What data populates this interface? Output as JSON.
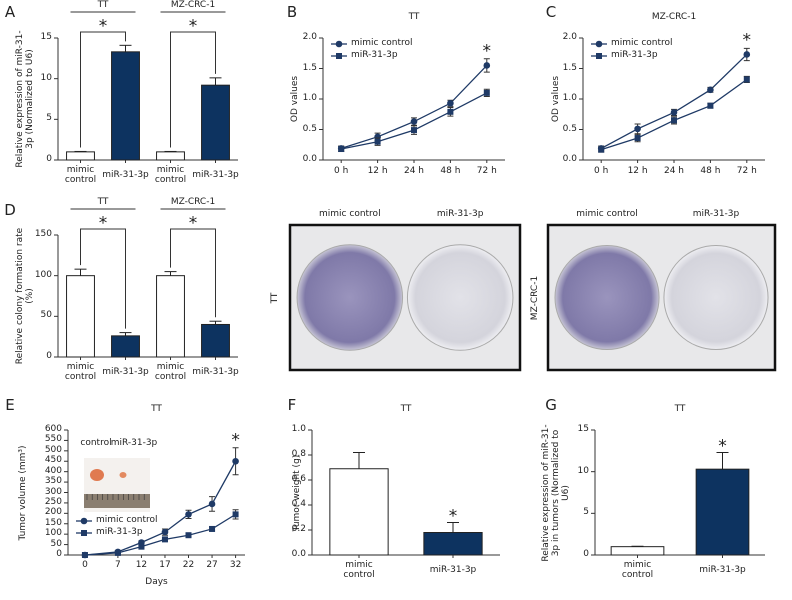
{
  "chart_data": [
    {
      "type": "bar",
      "panel": "A",
      "ylabel": "Relative expression of miR-31-3p (Normalized to U6)",
      "categories": [
        "mimic control",
        "miR-31-3p",
        "mimic control",
        "miR-31-3p"
      ],
      "values": [
        1,
        13.3,
        1,
        9.2
      ],
      "errors": [
        0.05,
        0.8,
        0.05,
        0.9
      ],
      "colors": [
        "#ffffff",
        "#0d3360",
        "#ffffff",
        "#0d3360"
      ],
      "groups": [
        "TT",
        "MZ-CRC-1"
      ],
      "significance": "*",
      "ylim": [
        0,
        15
      ],
      "yticks": [
        0,
        5,
        10,
        15
      ]
    },
    {
      "type": "line",
      "panel": "B",
      "title": "TT",
      "ylabel": "OD values",
      "categories": [
        "0 h",
        "12 h",
        "24 h",
        "48 h",
        "72 h"
      ],
      "series": [
        {
          "name": "mimic control",
          "color": "#1f3a66",
          "marker": "circle",
          "values": [
            0.19,
            0.38,
            0.63,
            0.93,
            1.55
          ],
          "errors": [
            0.04,
            0.06,
            0.06,
            0.05,
            0.11
          ]
        },
        {
          "name": "miR-31-3p",
          "color": "#1f3a66",
          "marker": "square",
          "values": [
            0.18,
            0.3,
            0.49,
            0.79,
            1.1
          ],
          "errors": [
            0.04,
            0.06,
            0.07,
            0.07,
            0.06
          ]
        }
      ],
      "legend": "upper left",
      "significance": "*",
      "ylim": [
        0,
        2
      ],
      "yticks": [
        {
          "value": 0,
          "label": "0.0"
        },
        0.5,
        {
          "value": 1,
          "label": "1.0"
        },
        1.5,
        {
          "value": 2,
          "label": "2.0"
        }
      ]
    },
    {
      "type": "line",
      "panel": "C",
      "title": "MZ-CRC-1",
      "ylabel": "OD values",
      "categories": [
        "0 h",
        "12 h",
        "24 h",
        "48 h",
        "72 h"
      ],
      "series": [
        {
          "name": "mimic control",
          "color": "#1f3a66",
          "marker": "circle",
          "values": [
            0.19,
            0.51,
            0.78,
            1.15,
            1.73
          ],
          "errors": [
            0.04,
            0.08,
            0.05,
            0.04,
            0.1
          ]
        },
        {
          "name": "miR-31-3p",
          "color": "#1f3a66",
          "marker": "square",
          "values": [
            0.17,
            0.36,
            0.65,
            0.89,
            1.32
          ],
          "errors": [
            0.04,
            0.06,
            0.06,
            0.04,
            0.05
          ]
        }
      ],
      "legend": "upper left",
      "significance": "*",
      "ylim": [
        0,
        2
      ],
      "yticks": [
        {
          "value": 0,
          "label": "0.0"
        },
        0.5,
        {
          "value": 1,
          "label": "1.0"
        },
        1.5,
        {
          "value": 2,
          "label": "2.0"
        }
      ]
    },
    {
      "type": "bar",
      "panel": "D",
      "ylabel": "Relative colony formation rate (%)",
      "categories": [
        "mimic control",
        "miR-31-3p",
        "mimic control",
        "miR-31-3p"
      ],
      "values": [
        100,
        26,
        100,
        40
      ],
      "errors": [
        8,
        4,
        5,
        4
      ],
      "colors": [
        "#ffffff",
        "#0d3360",
        "#ffffff",
        "#0d3360"
      ],
      "groups": [
        "TT",
        "MZ-CRC-1"
      ],
      "significance": "*",
      "ylim": [
        0,
        150
      ],
      "yticks": [
        0,
        50,
        100,
        150
      ]
    },
    {
      "type": "line",
      "panel": "E",
      "title": "TT",
      "ylabel": "Tumor volume (mm³)",
      "xlabel": "Days",
      "x": [
        0,
        7,
        12,
        17,
        22,
        27,
        32
      ],
      "series": [
        {
          "name": "mimic control",
          "color": "#1f3a66",
          "marker": "circle",
          "values": [
            0,
            15,
            60,
            110,
            195,
            245,
            450
          ],
          "errors": [
            0,
            5,
            8,
            15,
            20,
            35,
            65
          ]
        },
        {
          "name": "miR-31-3p",
          "color": "#1f3a66",
          "marker": "square",
          "values": [
            0,
            10,
            40,
            75,
            95,
            125,
            195
          ],
          "errors": [
            0,
            4,
            6,
            8,
            8,
            10,
            22
          ]
        }
      ],
      "legend": "lower left",
      "significance": "*",
      "inset_labels": [
        "control",
        "miR-31-3p"
      ],
      "xlim": [
        -3.6,
        34
      ],
      "xticks": [
        0,
        7,
        12,
        17,
        22,
        27,
        32
      ],
      "ylim": [
        0,
        600
      ],
      "yticks": [
        0,
        50,
        100,
        150,
        200,
        250,
        300,
        350,
        400,
        450,
        500,
        550,
        600
      ]
    },
    {
      "type": "bar",
      "panel": "F",
      "title": "TT",
      "ylabel": "Tumor weight (g)",
      "categories": [
        "mimic control",
        "miR-31-3p"
      ],
      "values": [
        0.69,
        0.18
      ],
      "errors": [
        0.13,
        0.08
      ],
      "colors": [
        "#ffffff",
        "#0d3360"
      ],
      "significance": "*",
      "ylim": [
        0,
        1
      ],
      "yticks": [
        {
          "value": 0,
          "label": "0.0"
        },
        0.2,
        0.4,
        0.6,
        0.8,
        {
          "value": 1,
          "label": "1.0"
        }
      ]
    },
    {
      "type": "bar",
      "panel": "G",
      "title": "TT",
      "ylabel": "Relative expression of miR-31-3p in tumors (Normalized to U6)",
      "categories": [
        "mimic control",
        "miR-31-3p"
      ],
      "values": [
        1,
        10.3
      ],
      "errors": [
        0.05,
        2.0
      ],
      "colors": [
        "#ffffff",
        "#0d3360"
      ],
      "significance": "*",
      "ylim": [
        0,
        15
      ],
      "yticks": [
        0,
        5,
        10,
        15
      ]
    }
  ],
  "photos": [
    {
      "label": "TT",
      "columns": [
        "mimic control",
        "miR-31-3p"
      ]
    },
    {
      "label": "MZ-CRC-1",
      "columns": [
        "mimic control",
        "miR-31-3p"
      ]
    }
  ]
}
